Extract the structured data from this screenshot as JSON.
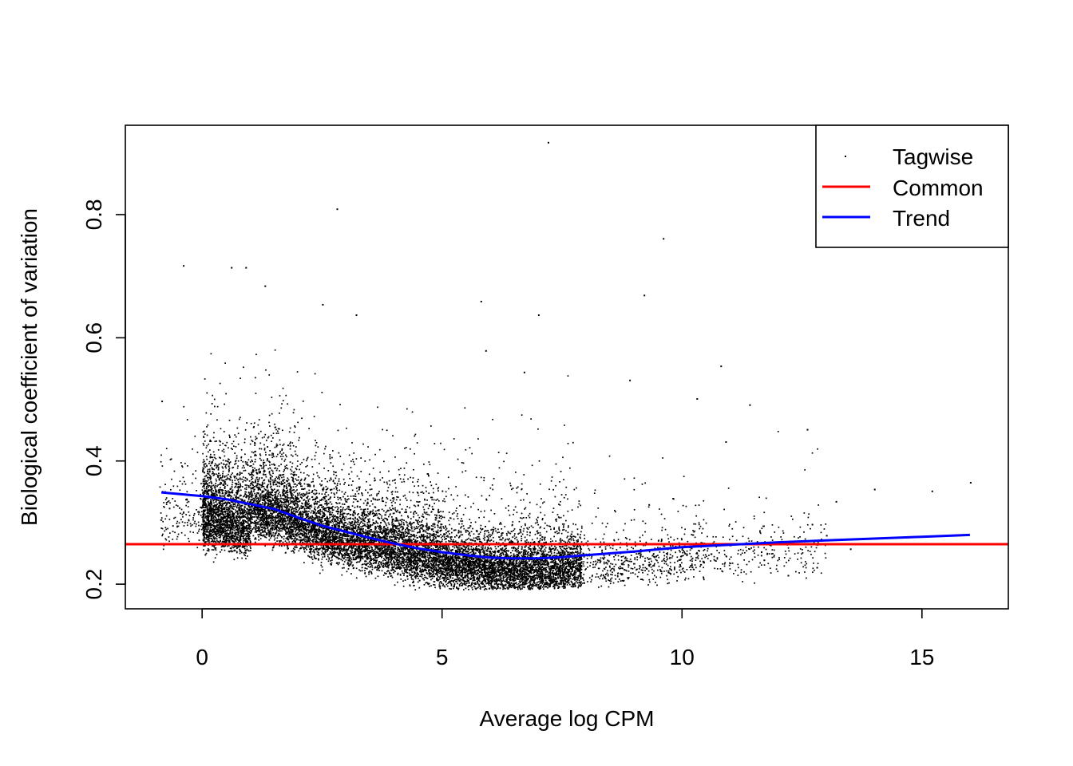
{
  "chart_data": {
    "type": "scatter",
    "title": "",
    "xlabel": "Average log CPM",
    "ylabel": "Biological coefficient of variation",
    "xlim": [
      -1.6,
      16.8
    ],
    "ylim": [
      0.16,
      0.945
    ],
    "x_ticks": [
      0,
      5,
      10,
      15
    ],
    "y_ticks": [
      0.2,
      0.4,
      0.6,
      0.8
    ],
    "x_tick_labels": [
      "0",
      "5",
      "10",
      "15"
    ],
    "y_tick_labels": [
      "0.2",
      "0.4",
      "0.6",
      "0.8"
    ],
    "grid": false,
    "legend_position": "top-right",
    "legend": [
      {
        "label": "Tagwise",
        "kind": "point",
        "color": "#000000"
      },
      {
        "label": "Common",
        "kind": "line",
        "color": "#ff0000"
      },
      {
        "label": "Trend",
        "kind": "line",
        "color": "#0000ff"
      }
    ],
    "series": [
      {
        "name": "Tagwise",
        "kind": "scatter",
        "color": "#000000",
        "n_points_approx": 14000,
        "outliers": [
          {
            "x": 7.2,
            "y": 0.918
          },
          {
            "x": 2.8,
            "y": 0.81
          },
          {
            "x": 9.6,
            "y": 0.762
          },
          {
            "x": -0.4,
            "y": 0.718
          },
          {
            "x": 0.9,
            "y": 0.715
          },
          {
            "x": 0.6,
            "y": 0.715
          },
          {
            "x": 9.2,
            "y": 0.67
          },
          {
            "x": 1.3,
            "y": 0.685
          },
          {
            "x": 5.8,
            "y": 0.66
          },
          {
            "x": 2.5,
            "y": 0.655
          },
          {
            "x": 3.2,
            "y": 0.638
          },
          {
            "x": 7.0,
            "y": 0.638
          },
          {
            "x": 5.9,
            "y": 0.58
          },
          {
            "x": 10.8,
            "y": 0.555
          },
          {
            "x": 6.7,
            "y": 0.545
          },
          {
            "x": 8.9,
            "y": 0.532
          },
          {
            "x": 10.3,
            "y": 0.502
          },
          {
            "x": 11.4,
            "y": 0.492
          },
          {
            "x": -0.85,
            "y": 0.498
          },
          {
            "x": 12.6,
            "y": 0.452
          },
          {
            "x": 10.9,
            "y": 0.432
          },
          {
            "x": 16.0,
            "y": 0.366
          },
          {
            "x": 14.0,
            "y": 0.355
          },
          {
            "x": 15.2,
            "y": 0.352
          },
          {
            "x": 13.2,
            "y": 0.335
          },
          {
            "x": 12.7,
            "y": 0.298
          },
          {
            "x": 13.0,
            "y": 0.28
          },
          {
            "x": 13.5,
            "y": 0.258
          },
          {
            "x": 12.8,
            "y": 0.228
          },
          {
            "x": 12.2,
            "y": 0.215
          },
          {
            "x": 11.7,
            "y": 0.24
          },
          {
            "x": 10.6,
            "y": 0.25
          },
          {
            "x": 9.8,
            "y": 0.34
          },
          {
            "x": 9.3,
            "y": 0.33
          }
        ]
      },
      {
        "name": "Common",
        "kind": "hline",
        "color": "#ff0000",
        "y": 0.265
      },
      {
        "name": "Trend",
        "kind": "line",
        "color": "#0000ff",
        "x": [
          -0.85,
          0.0,
          0.5,
          1.0,
          1.5,
          2.0,
          2.5,
          3.0,
          3.5,
          4.0,
          4.5,
          5.0,
          5.5,
          6.0,
          6.5,
          7.0,
          7.5,
          8.0,
          9.0,
          10.0,
          11.0,
          12.0,
          13.0,
          14.0,
          15.0,
          16.0
        ],
        "y": [
          0.349,
          0.343,
          0.338,
          0.33,
          0.322,
          0.308,
          0.295,
          0.285,
          0.275,
          0.266,
          0.258,
          0.252,
          0.247,
          0.243,
          0.242,
          0.242,
          0.244,
          0.247,
          0.253,
          0.26,
          0.264,
          0.268,
          0.271,
          0.274,
          0.277,
          0.28
        ]
      }
    ]
  }
}
